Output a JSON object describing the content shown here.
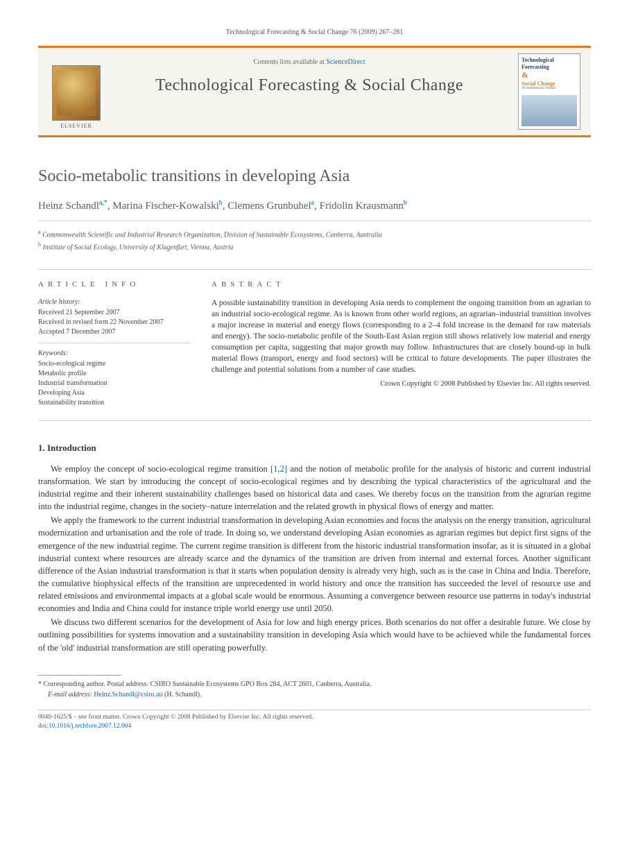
{
  "running_head": "Technological Forecasting & Social Change 76 (2009) 267–281",
  "banner": {
    "contents_prefix": "Contents lists available at ",
    "contents_link": "ScienceDirect",
    "journal_name": "Technological Forecasting & Social Change",
    "elsevier_label": "ELSEVIER",
    "cover": {
      "line1": "Technological",
      "line2": "Forecasting",
      "amp": "&",
      "line3": "Social Change",
      "tag": "An International Journal"
    }
  },
  "title": "Socio-metabolic transitions in developing Asia",
  "authors_html_parts": {
    "a1_name": "Heinz Schandl",
    "a1_sup": "a,",
    "a1_corr": "*",
    "sep": ", ",
    "a2_name": "Marina Fischer-Kowalski",
    "a2_sup": "b",
    "a3_name": "Clemens Grunbuhel",
    "a3_sup": "a",
    "a4_name": "Fridolin Krausmann",
    "a4_sup": "b"
  },
  "affiliations": {
    "a": "Commonwealth Scientific and Industrial Research Organization, Division of Sustainable Ecosystems, Canberra, Australia",
    "b": "Institute of Social Ecology, University of Klagenfurt, Vienna, Austria"
  },
  "info": {
    "head": "article info",
    "history_label": "Article history:",
    "received": "Received 21 September 2007",
    "revised": "Received in revised form 22 November 2007",
    "accepted": "Accepted 7 December 2007",
    "keywords_label": "Keywords:",
    "keywords": [
      "Socio-ecological regime",
      "Metabolic profile",
      "Industrial transformation",
      "Developing Asia",
      "Sustainability transition"
    ]
  },
  "abstract": {
    "head": "abstract",
    "text": "A possible sustainability transition in developing Asia needs to complement the ongoing transition from an agrarian to an industrial socio-ecological regime. As is known from other world regions, an agrarian–industrial transition involves a major increase in material and energy flows (corresponding to a 2–4 fold increase in the demand for raw materials and energy). The socio-metabolic profile of the South-East Asian region still shows relatively low material and energy consumption per capita, suggesting that major growth may follow. Infrastructures that are closely bound-up in bulk material flows (transport, energy and food sectors) will be critical to future developments. The paper illustrates the challenge and potential solutions from a number of case studies.",
    "copyright": "Crown Copyright © 2008 Published by Elsevier Inc. All rights reserved."
  },
  "section1": {
    "head": "1. Introduction",
    "p1_a": "We employ the concept of socio-ecological regime transition ",
    "p1_ref": "[1,2]",
    "p1_b": " and the notion of metabolic profile for the analysis of historic and current industrial transformation. We start by introducing the concept of socio-ecological regimes and by describing the typical characteristics of the agricultural and the industrial regime and their inherent sustainability challenges based on historical data and cases. We thereby focus on the transition from the agrarian regime into the industrial regime, changes in the society–nature interrelation and the related growth in physical flows of energy and matter.",
    "p2": "We apply the framework to the current industrial transformation in developing Asian economies and focus the analysis on the energy transition, agricultural modernization and urbanisation and the role of trade. In doing so, we understand developing Asian economies as agrarian regimes but depict first signs of the emergence of the new industrial regime. The current regime transition is different from the historic industrial transformation insofar, as it is situated in a global industrial context where resources are already scarce and the dynamics of the transition are driven from internal and external forces. Another significant difference of the Asian industrial transformation is that it starts when population density is already very high, such as is the case in China and India. Therefore, the cumulative biophysical effects of the transition are unprecedented in world history and once the transition has succeeded the level of resource use and related emissions and environmental impacts at a global scale would be enormous. Assuming a convergence between resource use patterns in today's industrial economies and India and China could for instance triple world energy use until 2050.",
    "p3": "We discuss two different scenarios for the development of Asia for low and high energy prices. Both scenarios do not offer a desirable future. We close by outlining possibilities for systems innovation and a sustainability transition in developing Asia which would have to be achieved while the fundamental forces of the 'old' industrial transformation are still operating powerfully."
  },
  "footnotes": {
    "corr_marker": "*",
    "corr_text": " Corresponding author. Postal address: CSIRO Sustainable Ecosystems GPO Box 284, ACT 2601, Canberra, Australia.",
    "email_label": "E-mail address: ",
    "email": "Heinz.Schandl@csiro.au",
    "email_suffix": " (H. Schandl)."
  },
  "bottom": {
    "issn_line": "0040-1625/$ – see front matter. Crown Copyright © 2008 Published by Elsevier Inc. All rights reserved.",
    "doi_label": "doi:",
    "doi": "10.1016/j.techfore.2007.12.004"
  },
  "colors": {
    "accent_orange": "#e77817",
    "link_blue": "#0066cc",
    "text_gray": "#5a5a5a",
    "rule_gray": "#cccccc"
  }
}
